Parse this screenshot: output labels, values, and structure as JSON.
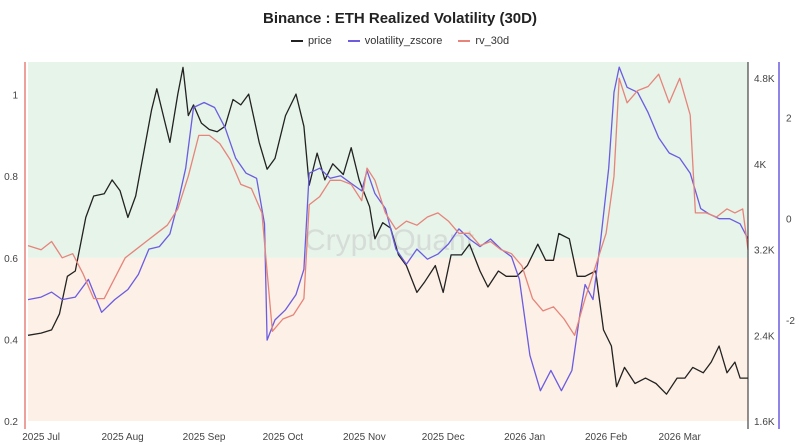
{
  "chart_data": {
    "type": "line",
    "title": "Binance : ETH Realized Volatility (30D)",
    "watermark": "CryptoQuant",
    "left_axis": {
      "ticks": [
        0.2,
        0.4,
        0.6,
        0.8,
        1
      ],
      "ylim": [
        0.2,
        1.08
      ],
      "color": "#e6847a"
    },
    "right_axis_price": {
      "ticks": [
        "1.6K",
        "2.4K",
        "3.2K",
        "4K",
        "4.8K"
      ],
      "tick_values": [
        1600,
        2400,
        3200,
        4000,
        4800
      ],
      "ylim": [
        1600,
        4950
      ]
    },
    "right_axis_zscore": {
      "ticks": [
        "-2",
        "0",
        "2"
      ],
      "tick_values": [
        -2,
        0,
        2
      ],
      "ylim": [
        -4,
        3.1
      ],
      "color": "#6b5ce0"
    },
    "bands": [
      {
        "from": 0.6,
        "to": 1.08,
        "color": "#e6f4ea"
      },
      {
        "from": 0.2,
        "to": 0.6,
        "color": "#fdf0e6"
      }
    ],
    "x_ticks": [
      "2025 Jul",
      "2025 Aug",
      "2025 Sep",
      "2025 Oct",
      "2025 Nov",
      "2025 Dec",
      "2026 Jan",
      "2026 Feb",
      "2026 Mar"
    ],
    "x_tick_dates": [
      "2025-07-01",
      "2025-08-01",
      "2025-09-01",
      "2025-10-01",
      "2025-11-01",
      "2025-12-01",
      "2026-01-01",
      "2026-02-01",
      "2026-03-01"
    ],
    "x_range": [
      "2025-06-26",
      "2026-03-27"
    ],
    "series": [
      {
        "name": "price",
        "color": "#222222",
        "axis": "price",
        "points": [
          [
            "2025-06-26",
            2400
          ],
          [
            "2025-07-01",
            2420
          ],
          [
            "2025-07-05",
            2450
          ],
          [
            "2025-07-08",
            2600
          ],
          [
            "2025-07-11",
            2950
          ],
          [
            "2025-07-14",
            3000
          ],
          [
            "2025-07-18",
            3500
          ],
          [
            "2025-07-21",
            3700
          ],
          [
            "2025-07-25",
            3720
          ],
          [
            "2025-07-28",
            3850
          ],
          [
            "2025-07-31",
            3750
          ],
          [
            "2025-08-03",
            3500
          ],
          [
            "2025-08-06",
            3700
          ],
          [
            "2025-08-09",
            4100
          ],
          [
            "2025-08-12",
            4500
          ],
          [
            "2025-08-14",
            4700
          ],
          [
            "2025-08-17",
            4400
          ],
          [
            "2025-08-19",
            4200
          ],
          [
            "2025-08-22",
            4650
          ],
          [
            "2025-08-24",
            4900
          ],
          [
            "2025-08-26",
            4450
          ],
          [
            "2025-08-28",
            4550
          ],
          [
            "2025-08-31",
            4380
          ],
          [
            "2025-09-03",
            4320
          ],
          [
            "2025-09-06",
            4300
          ],
          [
            "2025-09-09",
            4350
          ],
          [
            "2025-09-12",
            4600
          ],
          [
            "2025-09-15",
            4550
          ],
          [
            "2025-09-18",
            4650
          ],
          [
            "2025-09-22",
            4200
          ],
          [
            "2025-09-25",
            3950
          ],
          [
            "2025-09-28",
            4050
          ],
          [
            "2025-10-02",
            4450
          ],
          [
            "2025-10-06",
            4650
          ],
          [
            "2025-10-09",
            4350
          ],
          [
            "2025-10-11",
            3800
          ],
          [
            "2025-10-14",
            4100
          ],
          [
            "2025-10-17",
            3850
          ],
          [
            "2025-10-20",
            4000
          ],
          [
            "2025-10-24",
            3900
          ],
          [
            "2025-10-27",
            4150
          ],
          [
            "2025-10-30",
            3850
          ],
          [
            "2025-11-03",
            3600
          ],
          [
            "2025-11-05",
            3300
          ],
          [
            "2025-11-08",
            3450
          ],
          [
            "2025-11-11",
            3400
          ],
          [
            "2025-11-14",
            3150
          ],
          [
            "2025-11-17",
            3050
          ],
          [
            "2025-11-21",
            2800
          ],
          [
            "2025-11-24",
            2900
          ],
          [
            "2025-11-28",
            3050
          ],
          [
            "2025-12-01",
            2800
          ],
          [
            "2025-12-04",
            3150
          ],
          [
            "2025-12-08",
            3150
          ],
          [
            "2025-12-11",
            3250
          ],
          [
            "2025-12-15",
            3000
          ],
          [
            "2025-12-18",
            2850
          ],
          [
            "2025-12-22",
            3000
          ],
          [
            "2025-12-25",
            2950
          ],
          [
            "2025-12-29",
            2950
          ],
          [
            "2026-01-02",
            3050
          ],
          [
            "2026-01-06",
            3250
          ],
          [
            "2026-01-09",
            3100
          ],
          [
            "2026-01-12",
            3100
          ],
          [
            "2026-01-14",
            3350
          ],
          [
            "2026-01-18",
            3300
          ],
          [
            "2026-01-21",
            2950
          ],
          [
            "2026-01-24",
            2950
          ],
          [
            "2026-01-28",
            3000
          ],
          [
            "2026-01-31",
            2450
          ],
          [
            "2026-02-03",
            2300
          ],
          [
            "2026-02-05",
            1920
          ],
          [
            "2026-02-08",
            2100
          ],
          [
            "2026-02-12",
            1950
          ],
          [
            "2026-02-16",
            2000
          ],
          [
            "2026-02-20",
            1950
          ],
          [
            "2026-02-24",
            1850
          ],
          [
            "2026-02-28",
            2000
          ],
          [
            "2026-03-03",
            2000
          ],
          [
            "2026-03-06",
            2100
          ],
          [
            "2026-03-10",
            2050
          ],
          [
            "2026-03-13",
            2150
          ],
          [
            "2026-03-16",
            2300
          ],
          [
            "2026-03-19",
            2050
          ],
          [
            "2026-03-22",
            2150
          ],
          [
            "2026-03-24",
            2000
          ],
          [
            "2026-03-27",
            2000
          ]
        ]
      },
      {
        "name": "volatility_zscore",
        "color": "#6b5ce0",
        "axis": "zscore",
        "points": [
          [
            "2025-06-26",
            -1.6
          ],
          [
            "2025-07-01",
            -1.55
          ],
          [
            "2025-07-05",
            -1.45
          ],
          [
            "2025-07-09",
            -1.6
          ],
          [
            "2025-07-14",
            -1.55
          ],
          [
            "2025-07-19",
            -1.2
          ],
          [
            "2025-07-24",
            -1.85
          ],
          [
            "2025-07-29",
            -1.6
          ],
          [
            "2025-08-03",
            -1.4
          ],
          [
            "2025-08-07",
            -1.1
          ],
          [
            "2025-08-11",
            -0.6
          ],
          [
            "2025-08-15",
            -0.55
          ],
          [
            "2025-08-19",
            -0.3
          ],
          [
            "2025-08-22",
            0.3
          ],
          [
            "2025-08-25",
            1.0
          ],
          [
            "2025-08-28",
            2.2
          ],
          [
            "2025-09-01",
            2.3
          ],
          [
            "2025-09-05",
            2.2
          ],
          [
            "2025-09-09",
            1.8
          ],
          [
            "2025-09-13",
            1.2
          ],
          [
            "2025-09-17",
            0.9
          ],
          [
            "2025-09-21",
            0.8
          ],
          [
            "2025-09-24",
            -0.1
          ],
          [
            "2025-09-25",
            -2.4
          ],
          [
            "2025-09-28",
            -2.0
          ],
          [
            "2025-10-02",
            -1.8
          ],
          [
            "2025-10-06",
            -1.5
          ],
          [
            "2025-10-09",
            -1.0
          ],
          [
            "2025-10-11",
            0.9
          ],
          [
            "2025-10-15",
            1.0
          ],
          [
            "2025-10-19",
            0.8
          ],
          [
            "2025-10-23",
            0.85
          ],
          [
            "2025-10-27",
            0.7
          ],
          [
            "2025-10-31",
            0.55
          ],
          [
            "2025-11-02",
            0.95
          ],
          [
            "2025-11-05",
            0.5
          ],
          [
            "2025-11-09",
            0.2
          ],
          [
            "2025-11-13",
            -0.6
          ],
          [
            "2025-11-17",
            -0.9
          ],
          [
            "2025-11-21",
            -0.6
          ],
          [
            "2025-11-25",
            -0.8
          ],
          [
            "2025-11-29",
            -0.7
          ],
          [
            "2025-12-03",
            -0.5
          ],
          [
            "2025-12-07",
            -0.2
          ],
          [
            "2025-12-11",
            -0.4
          ],
          [
            "2025-12-15",
            -0.55
          ],
          [
            "2025-12-19",
            -0.4
          ],
          [
            "2025-12-23",
            -0.6
          ],
          [
            "2025-12-27",
            -0.75
          ],
          [
            "2025-12-30",
            -1.2
          ],
          [
            "2026-01-03",
            -2.7
          ],
          [
            "2026-01-07",
            -3.4
          ],
          [
            "2026-01-11",
            -3.0
          ],
          [
            "2026-01-15",
            -3.4
          ],
          [
            "2026-01-19",
            -3.0
          ],
          [
            "2026-01-22",
            -1.9
          ],
          [
            "2026-01-24",
            -1.3
          ],
          [
            "2026-01-27",
            -1.6
          ],
          [
            "2026-01-30",
            -0.4
          ],
          [
            "2026-02-02",
            1.0
          ],
          [
            "2026-02-04",
            2.5
          ],
          [
            "2026-02-06",
            3.0
          ],
          [
            "2026-02-09",
            2.6
          ],
          [
            "2026-02-13",
            2.5
          ],
          [
            "2026-02-17",
            2.1
          ],
          [
            "2026-02-21",
            1.6
          ],
          [
            "2026-02-25",
            1.3
          ],
          [
            "2026-03-01",
            1.2
          ],
          [
            "2026-03-05",
            0.9
          ],
          [
            "2026-03-09",
            0.2
          ],
          [
            "2026-03-12",
            0.1
          ],
          [
            "2026-03-16",
            0.0
          ],
          [
            "2026-03-20",
            0.0
          ],
          [
            "2026-03-24",
            -0.1
          ],
          [
            "2026-03-27",
            -0.4
          ]
        ]
      },
      {
        "name": "rv_30d",
        "color": "#e6847a",
        "axis": "left",
        "points": [
          [
            "2025-06-26",
            0.63
          ],
          [
            "2025-07-01",
            0.62
          ],
          [
            "2025-07-05",
            0.64
          ],
          [
            "2025-07-09",
            0.6
          ],
          [
            "2025-07-13",
            0.61
          ],
          [
            "2025-07-17",
            0.56
          ],
          [
            "2025-07-21",
            0.5
          ],
          [
            "2025-07-25",
            0.5
          ],
          [
            "2025-07-29",
            0.55
          ],
          [
            "2025-08-02",
            0.6
          ],
          [
            "2025-08-06",
            0.62
          ],
          [
            "2025-08-10",
            0.64
          ],
          [
            "2025-08-14",
            0.66
          ],
          [
            "2025-08-18",
            0.68
          ],
          [
            "2025-08-22",
            0.72
          ],
          [
            "2025-08-26",
            0.8
          ],
          [
            "2025-08-30",
            0.9
          ],
          [
            "2025-09-03",
            0.9
          ],
          [
            "2025-09-07",
            0.88
          ],
          [
            "2025-09-11",
            0.84
          ],
          [
            "2025-09-15",
            0.78
          ],
          [
            "2025-09-19",
            0.77
          ],
          [
            "2025-09-23",
            0.71
          ],
          [
            "2025-09-27",
            0.42
          ],
          [
            "2025-10-01",
            0.45
          ],
          [
            "2025-10-05",
            0.46
          ],
          [
            "2025-10-09",
            0.5
          ],
          [
            "2025-10-11",
            0.73
          ],
          [
            "2025-10-15",
            0.75
          ],
          [
            "2025-10-19",
            0.79
          ],
          [
            "2025-10-23",
            0.79
          ],
          [
            "2025-10-27",
            0.78
          ],
          [
            "2025-10-31",
            0.74
          ],
          [
            "2025-11-02",
            0.82
          ],
          [
            "2025-11-05",
            0.79
          ],
          [
            "2025-11-09",
            0.71
          ],
          [
            "2025-11-13",
            0.67
          ],
          [
            "2025-11-17",
            0.69
          ],
          [
            "2025-11-21",
            0.68
          ],
          [
            "2025-11-25",
            0.7
          ],
          [
            "2025-11-29",
            0.71
          ],
          [
            "2025-12-03",
            0.69
          ],
          [
            "2025-12-07",
            0.66
          ],
          [
            "2025-12-11",
            0.66
          ],
          [
            "2025-12-15",
            0.63
          ],
          [
            "2025-12-19",
            0.64
          ],
          [
            "2025-12-23",
            0.62
          ],
          [
            "2025-12-27",
            0.61
          ],
          [
            "2025-12-31",
            0.58
          ],
          [
            "2026-01-04",
            0.5
          ],
          [
            "2026-01-08",
            0.47
          ],
          [
            "2026-01-12",
            0.48
          ],
          [
            "2026-01-16",
            0.45
          ],
          [
            "2026-01-20",
            0.41
          ],
          [
            "2026-01-24",
            0.5
          ],
          [
            "2026-01-28",
            0.58
          ],
          [
            "2026-02-01",
            0.66
          ],
          [
            "2026-02-04",
            0.8
          ],
          [
            "2026-02-06",
            1.04
          ],
          [
            "2026-02-09",
            0.98
          ],
          [
            "2026-02-13",
            1.01
          ],
          [
            "2026-02-17",
            1.02
          ],
          [
            "2026-02-21",
            1.05
          ],
          [
            "2026-02-25",
            0.98
          ],
          [
            "2026-03-01",
            1.04
          ],
          [
            "2026-03-05",
            0.95
          ],
          [
            "2026-03-07",
            0.71
          ],
          [
            "2026-03-11",
            0.71
          ],
          [
            "2026-03-15",
            0.7
          ],
          [
            "2026-03-19",
            0.72
          ],
          [
            "2026-03-22",
            0.71
          ],
          [
            "2026-03-25",
            0.72
          ],
          [
            "2026-03-27",
            0.62
          ]
        ]
      }
    ],
    "grid": false,
    "legend_position": "top-center"
  }
}
